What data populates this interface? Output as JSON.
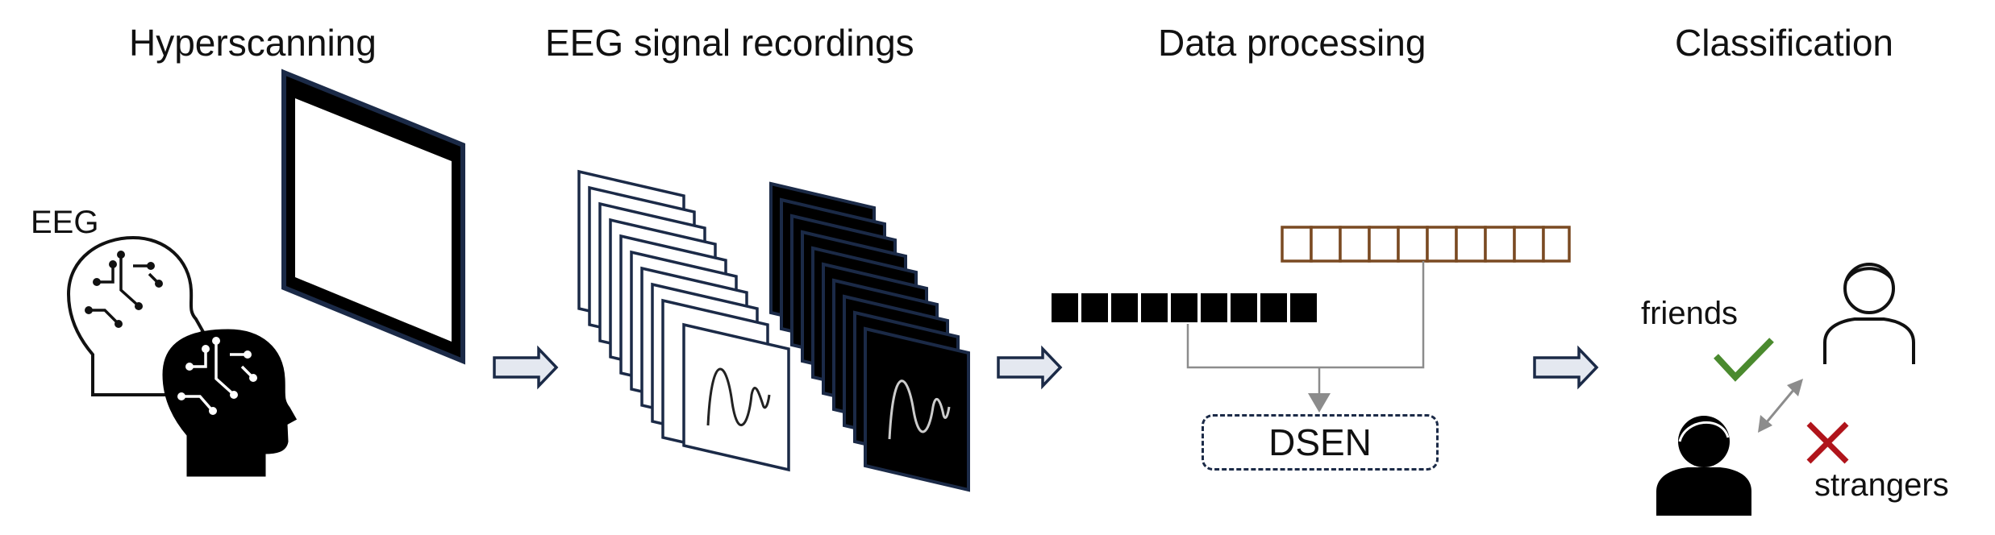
{
  "titles": {
    "hyperscanning": "Hyperscanning",
    "eeg_recordings": "EEG signal recordings",
    "data_processing": "Data processing",
    "classification": "Classification"
  },
  "labels": {
    "eeg": "EEG",
    "dsen": "DSEN",
    "friends": "friends",
    "strangers": "strangers"
  },
  "colors": {
    "navy": "#1b2a47",
    "brown": "#7a4a22",
    "green": "#4a8a2e",
    "red": "#b0141b",
    "gray": "#8c8c8c",
    "arrow_fill": "#e4e8f0"
  },
  "icons": [
    "brain-circuit-head-icon",
    "screen-frame",
    "waveform-icon",
    "person-icon",
    "checkmark-icon",
    "cross-icon",
    "double-arrow-icon"
  ]
}
